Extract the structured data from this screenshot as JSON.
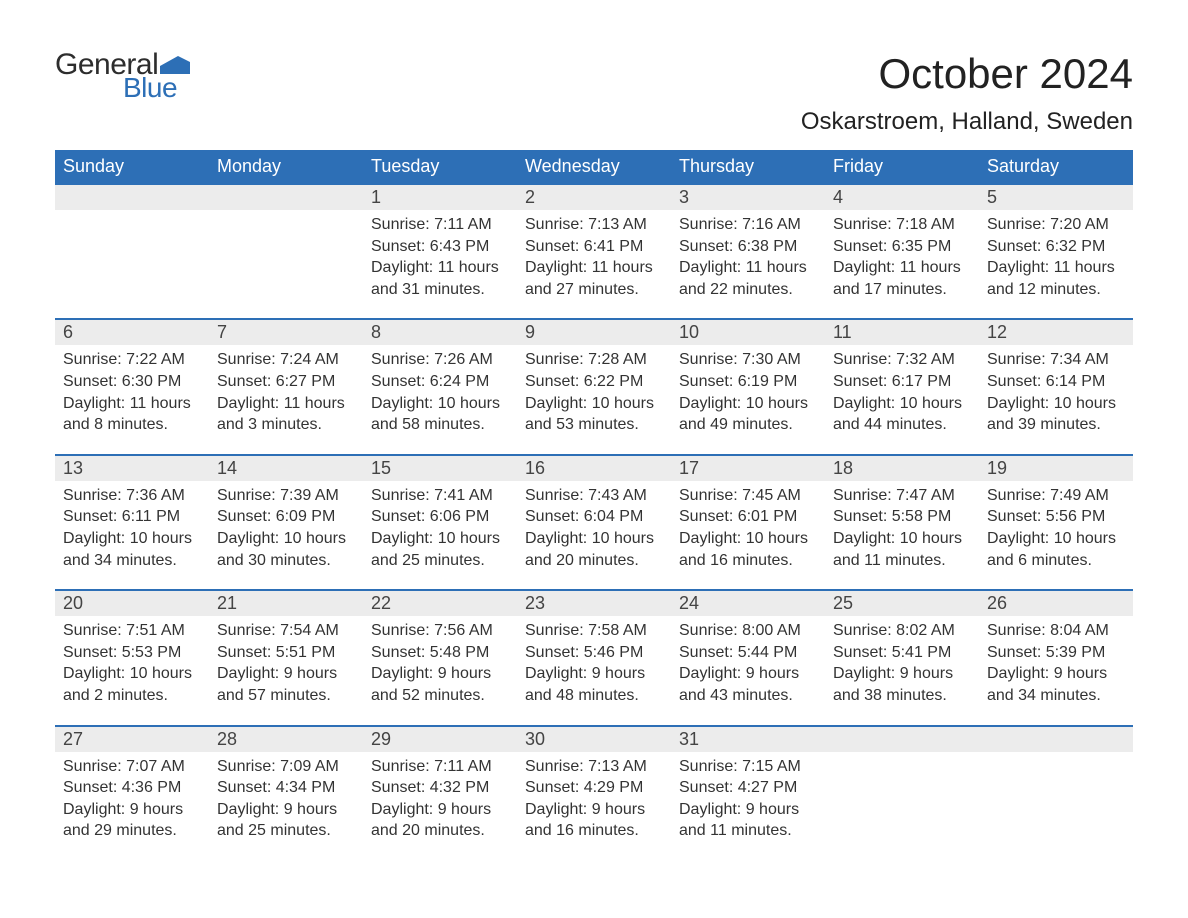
{
  "brand": {
    "part1": "General",
    "part2": "Blue",
    "flag_color": "#2d6fb6"
  },
  "title": "October 2024",
  "location": "Oskarstroem, Halland, Sweden",
  "colors": {
    "header_bg": "#2d6fb6",
    "header_text": "#ffffff",
    "daynum_bg": "#ececec",
    "week_border": "#2d6fb6",
    "body_text": "#333333",
    "page_bg": "#ffffff"
  },
  "day_headers": [
    "Sunday",
    "Monday",
    "Tuesday",
    "Wednesday",
    "Thursday",
    "Friday",
    "Saturday"
  ],
  "weeks": [
    [
      {
        "n": "",
        "sunrise": "",
        "sunset": "",
        "daylight": ""
      },
      {
        "n": "",
        "sunrise": "",
        "sunset": "",
        "daylight": ""
      },
      {
        "n": "1",
        "sunrise": "Sunrise: 7:11 AM",
        "sunset": "Sunset: 6:43 PM",
        "daylight": "Daylight: 11 hours and 31 minutes."
      },
      {
        "n": "2",
        "sunrise": "Sunrise: 7:13 AM",
        "sunset": "Sunset: 6:41 PM",
        "daylight": "Daylight: 11 hours and 27 minutes."
      },
      {
        "n": "3",
        "sunrise": "Sunrise: 7:16 AM",
        "sunset": "Sunset: 6:38 PM",
        "daylight": "Daylight: 11 hours and 22 minutes."
      },
      {
        "n": "4",
        "sunrise": "Sunrise: 7:18 AM",
        "sunset": "Sunset: 6:35 PM",
        "daylight": "Daylight: 11 hours and 17 minutes."
      },
      {
        "n": "5",
        "sunrise": "Sunrise: 7:20 AM",
        "sunset": "Sunset: 6:32 PM",
        "daylight": "Daylight: 11 hours and 12 minutes."
      }
    ],
    [
      {
        "n": "6",
        "sunrise": "Sunrise: 7:22 AM",
        "sunset": "Sunset: 6:30 PM",
        "daylight": "Daylight: 11 hours and 8 minutes."
      },
      {
        "n": "7",
        "sunrise": "Sunrise: 7:24 AM",
        "sunset": "Sunset: 6:27 PM",
        "daylight": "Daylight: 11 hours and 3 minutes."
      },
      {
        "n": "8",
        "sunrise": "Sunrise: 7:26 AM",
        "sunset": "Sunset: 6:24 PM",
        "daylight": "Daylight: 10 hours and 58 minutes."
      },
      {
        "n": "9",
        "sunrise": "Sunrise: 7:28 AM",
        "sunset": "Sunset: 6:22 PM",
        "daylight": "Daylight: 10 hours and 53 minutes."
      },
      {
        "n": "10",
        "sunrise": "Sunrise: 7:30 AM",
        "sunset": "Sunset: 6:19 PM",
        "daylight": "Daylight: 10 hours and 49 minutes."
      },
      {
        "n": "11",
        "sunrise": "Sunrise: 7:32 AM",
        "sunset": "Sunset: 6:17 PM",
        "daylight": "Daylight: 10 hours and 44 minutes."
      },
      {
        "n": "12",
        "sunrise": "Sunrise: 7:34 AM",
        "sunset": "Sunset: 6:14 PM",
        "daylight": "Daylight: 10 hours and 39 minutes."
      }
    ],
    [
      {
        "n": "13",
        "sunrise": "Sunrise: 7:36 AM",
        "sunset": "Sunset: 6:11 PM",
        "daylight": "Daylight: 10 hours and 34 minutes."
      },
      {
        "n": "14",
        "sunrise": "Sunrise: 7:39 AM",
        "sunset": "Sunset: 6:09 PM",
        "daylight": "Daylight: 10 hours and 30 minutes."
      },
      {
        "n": "15",
        "sunrise": "Sunrise: 7:41 AM",
        "sunset": "Sunset: 6:06 PM",
        "daylight": "Daylight: 10 hours and 25 minutes."
      },
      {
        "n": "16",
        "sunrise": "Sunrise: 7:43 AM",
        "sunset": "Sunset: 6:04 PM",
        "daylight": "Daylight: 10 hours and 20 minutes."
      },
      {
        "n": "17",
        "sunrise": "Sunrise: 7:45 AM",
        "sunset": "Sunset: 6:01 PM",
        "daylight": "Daylight: 10 hours and 16 minutes."
      },
      {
        "n": "18",
        "sunrise": "Sunrise: 7:47 AM",
        "sunset": "Sunset: 5:58 PM",
        "daylight": "Daylight: 10 hours and 11 minutes."
      },
      {
        "n": "19",
        "sunrise": "Sunrise: 7:49 AM",
        "sunset": "Sunset: 5:56 PM",
        "daylight": "Daylight: 10 hours and 6 minutes."
      }
    ],
    [
      {
        "n": "20",
        "sunrise": "Sunrise: 7:51 AM",
        "sunset": "Sunset: 5:53 PM",
        "daylight": "Daylight: 10 hours and 2 minutes."
      },
      {
        "n": "21",
        "sunrise": "Sunrise: 7:54 AM",
        "sunset": "Sunset: 5:51 PM",
        "daylight": "Daylight: 9 hours and 57 minutes."
      },
      {
        "n": "22",
        "sunrise": "Sunrise: 7:56 AM",
        "sunset": "Sunset: 5:48 PM",
        "daylight": "Daylight: 9 hours and 52 minutes."
      },
      {
        "n": "23",
        "sunrise": "Sunrise: 7:58 AM",
        "sunset": "Sunset: 5:46 PM",
        "daylight": "Daylight: 9 hours and 48 minutes."
      },
      {
        "n": "24",
        "sunrise": "Sunrise: 8:00 AM",
        "sunset": "Sunset: 5:44 PM",
        "daylight": "Daylight: 9 hours and 43 minutes."
      },
      {
        "n": "25",
        "sunrise": "Sunrise: 8:02 AM",
        "sunset": "Sunset: 5:41 PM",
        "daylight": "Daylight: 9 hours and 38 minutes."
      },
      {
        "n": "26",
        "sunrise": "Sunrise: 8:04 AM",
        "sunset": "Sunset: 5:39 PM",
        "daylight": "Daylight: 9 hours and 34 minutes."
      }
    ],
    [
      {
        "n": "27",
        "sunrise": "Sunrise: 7:07 AM",
        "sunset": "Sunset: 4:36 PM",
        "daylight": "Daylight: 9 hours and 29 minutes."
      },
      {
        "n": "28",
        "sunrise": "Sunrise: 7:09 AM",
        "sunset": "Sunset: 4:34 PM",
        "daylight": "Daylight: 9 hours and 25 minutes."
      },
      {
        "n": "29",
        "sunrise": "Sunrise: 7:11 AM",
        "sunset": "Sunset: 4:32 PM",
        "daylight": "Daylight: 9 hours and 20 minutes."
      },
      {
        "n": "30",
        "sunrise": "Sunrise: 7:13 AM",
        "sunset": "Sunset: 4:29 PM",
        "daylight": "Daylight: 9 hours and 16 minutes."
      },
      {
        "n": "31",
        "sunrise": "Sunrise: 7:15 AM",
        "sunset": "Sunset: 4:27 PM",
        "daylight": "Daylight: 9 hours and 11 minutes."
      },
      {
        "n": "",
        "sunrise": "",
        "sunset": "",
        "daylight": ""
      },
      {
        "n": "",
        "sunrise": "",
        "sunset": "",
        "daylight": ""
      }
    ]
  ]
}
